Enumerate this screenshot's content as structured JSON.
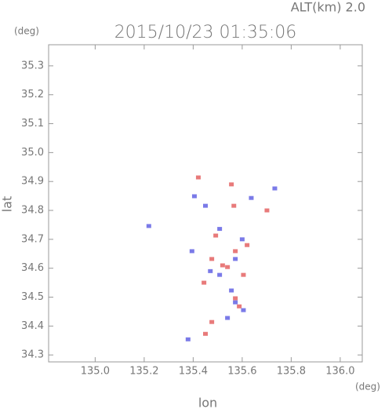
{
  "chart_data": {
    "type": "scatter",
    "title": "2015/10/23 01:35:06",
    "subtitle": "ALT(km) 2.0",
    "y_unit": "(deg)",
    "x_unit": "(deg)",
    "x_label": "lon",
    "y_label": "lat",
    "xlim": [
      134.81,
      136.09
    ],
    "ylim": [
      34.276,
      35.373
    ],
    "xticks": [
      {
        "value": 135,
        "label": "135.0"
      },
      135.2,
      135.4,
      135.6,
      135.8,
      {
        "value": 136,
        "label": "136.0"
      }
    ],
    "yticks": [
      34.3,
      34.4,
      34.5,
      34.6,
      34.7,
      34.8,
      34.9,
      {
        "value": 35,
        "label": "35.0"
      },
      35.1,
      35.2,
      35.3
    ],
    "series": [
      {
        "color": "#e87a7a",
        "x": [
          135.421,
          135.566,
          135.701,
          135.492,
          135.572,
          135.476,
          135.54,
          135.605,
          135.444,
          135.572,
          135.588,
          135.476,
          135.45,
          135.556,
          135.62,
          135.52
        ],
        "values": [
          34.914,
          34.816,
          34.8,
          34.713,
          34.659,
          34.632,
          34.604,
          34.577,
          34.55,
          34.496,
          34.468,
          34.414,
          34.373,
          34.89,
          34.68,
          34.61
        ]
      },
      {
        "color": "#7a7ae8",
        "x": [
          135.405,
          135.45,
          135.637,
          135.733,
          135.508,
          135.395,
          135.572,
          135.508,
          135.556,
          135.572,
          135.605,
          135.379,
          135.54,
          135.219,
          135.6,
          135.47
        ],
        "values": [
          34.849,
          34.816,
          34.843,
          34.876,
          34.736,
          34.659,
          34.632,
          34.577,
          34.523,
          34.482,
          34.455,
          34.354,
          34.428,
          34.746,
          34.7,
          34.59
        ]
      }
    ]
  }
}
